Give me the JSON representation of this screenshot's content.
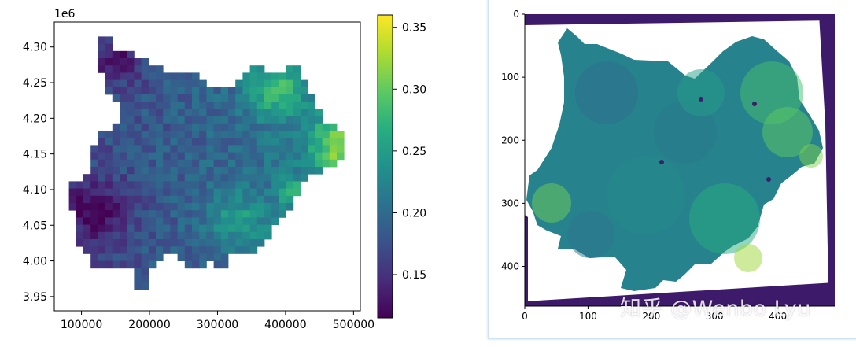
{
  "chart_data": [
    {
      "type": "heatmap",
      "title": "",
      "xlabel": "",
      "ylabel": "",
      "offset_label": "1e6",
      "xlim": [
        60000,
        510000
      ],
      "ylim": [
        3930000,
        4335000
      ],
      "xticks": [
        100000,
        200000,
        300000,
        400000,
        500000
      ],
      "xtick_labels": [
        "100000",
        "200000",
        "300000",
        "400000",
        "500000"
      ],
      "yticks": [
        3950000,
        4000000,
        4050000,
        4100000,
        4150000,
        4200000,
        4250000,
        4300000
      ],
      "ytick_labels": [
        "3.95",
        "4.00",
        "4.05",
        "4.10",
        "4.15",
        "4.20",
        "4.25",
        "4.30"
      ],
      "colormap": "viridis",
      "colorbar": {
        "range": [
          0.115,
          0.36
        ],
        "ticks": [
          0.15,
          0.2,
          0.25,
          0.3,
          0.35
        ],
        "tick_labels": [
          "0.15",
          "0.20",
          "0.25",
          "0.30",
          "0.35"
        ]
      },
      "grid": false
    },
    {
      "type": "heatmap",
      "title": "",
      "xlabel": "",
      "ylabel": "",
      "xticks": [
        0,
        100,
        200,
        300,
        400
      ],
      "xtick_labels": [
        "0",
        "100",
        "200",
        "300",
        "400"
      ],
      "yticks": [
        0,
        100,
        200,
        300,
        400
      ],
      "ytick_labels": [
        "0",
        "100",
        "200",
        "300",
        "400"
      ],
      "xlim": [
        0,
        490
      ],
      "ylim": [
        0,
        463
      ],
      "colormap": "viridis",
      "grid": false
    }
  ],
  "watermark": "知乎 @Wenbo Lyu"
}
